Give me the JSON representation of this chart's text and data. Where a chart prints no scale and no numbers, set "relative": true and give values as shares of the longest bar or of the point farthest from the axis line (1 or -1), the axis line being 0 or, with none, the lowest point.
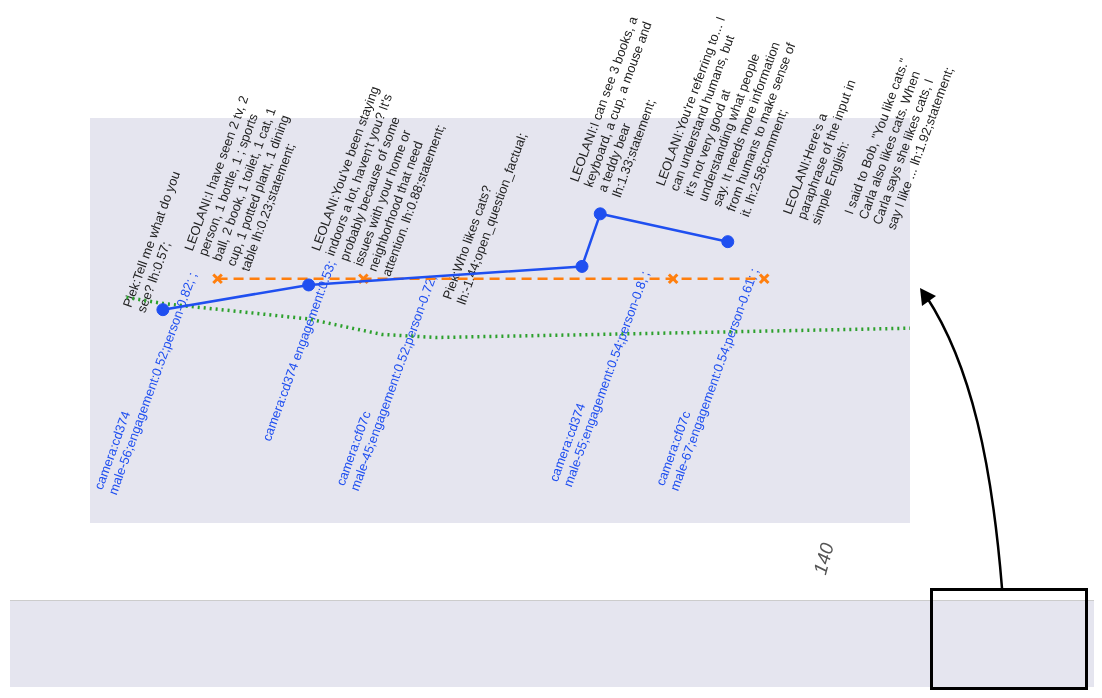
{
  "chart_data": {
    "type": "line",
    "relative": true,
    "legend": false,
    "categories": [
      null,
      null,
      null,
      null,
      null,
      null,
      null,
      null,
      null,
      null,
      null,
      null,
      null,
      null,
      null,
      null,
      null,
      null,
      null,
      null,
      null,
      null,
      null,
      null,
      null,
      null,
      null,
      null,
      null,
      null,
      null,
      null,
      null,
      null,
      null,
      null,
      null,
      null,
      null,
      null,
      null,
      null,
      null,
      null,
      null,
      null
    ],
    "series": [
      {
        "color": "#1f4ff0",
        "marker": "circle",
        "line_style": "solid",
        "values": [
          null,
          null,
          null,
          null,
          0.69,
          null,
          null,
          null,
          null,
          null,
          null,
          null,
          0.77,
          null,
          null,
          null,
          null,
          null,
          null,
          null,
          null,
          null,
          null,
          null,
          null,
          null,
          null,
          0.83,
          1.0,
          null,
          null,
          null,
          null,
          null,
          null,
          0.91,
          null,
          null,
          null,
          null,
          null,
          null,
          null,
          null,
          null,
          null
        ]
      },
      {
        "color": "#ff7f0e",
        "marker": "cross",
        "line_style": "dashed",
        "values": [
          null,
          null,
          null,
          null,
          null,
          null,
          null,
          0.79,
          null,
          null,
          null,
          null,
          null,
          null,
          null,
          0.79,
          null,
          null,
          null,
          null,
          null,
          null,
          null,
          null,
          null,
          null,
          null,
          null,
          null,
          null,
          null,
          null,
          0.79,
          null,
          null,
          null,
          null,
          0.79,
          null,
          null,
          null,
          null,
          null,
          null,
          null,
          null
        ]
      },
      {
        "color": "#2ca02c",
        "marker": "none",
        "line_style": "dotted",
        "values": [
          null,
          null,
          0.73,
          null,
          0.71,
          null,
          null,
          null,
          null,
          null,
          null,
          null,
          0.66,
          null,
          null,
          null,
          0.61,
          null,
          null,
          0.6,
          null,
          null,
          null,
          null,
          null,
          null,
          null,
          null,
          0.61,
          null,
          null,
          null,
          null,
          null,
          null,
          null,
          null,
          null,
          null,
          null,
          null,
          null,
          null,
          null,
          null,
          0.63
        ]
      }
    ],
    "annotations": [
      "Piek:Tell me what do you see? lh:0.57;",
      "LEOLANI:I have seen 2 tv, 2 person, 1 bottle, 1 ; sports ball, 2 book, 1 toilet, 1 cat, 1 cup, 1 potted plant, 1 dining table lh:0.23;statement;",
      "LEOLANI:You've been staying indoors a lot, haven't you? It's probably because of some issues with your home or neighborhood that need attention. lh:0.88;statement;",
      "Piek:Who likes cats? lh:-1.44;open_question_factual;",
      "LEOLANI:I can see 3 books, a keyboard, a cup, a mouse and a teddy bear lh:1.33;statement;",
      "LEOLANI:You're referring to... I can understand humans, but it's not very good at understanding what people say. It needs more information from humans to make sense of it. lh:2.58;comment;",
      "LEOLANI:Here's a paraphrase of the input in simple English:",
      "I said to Bob, \"You like cats.\" Carla also likes cats. When Carla says she likes cats, I say I like ... lh:1.92;statement;",
      "camera:cd374 male-56;engagement:0.52;person-0.82; ;",
      "camera:cd374 engagement:0.53;",
      "camera:cf07c male-45;engagement:0.52;person-0.72;",
      "camera:cd374 male-55;engagement:0.54;person-0.8; ;",
      "camera:cf07c male-67;engagement:0.54;person-0.61; ;",
      "140"
    ]
  }
}
